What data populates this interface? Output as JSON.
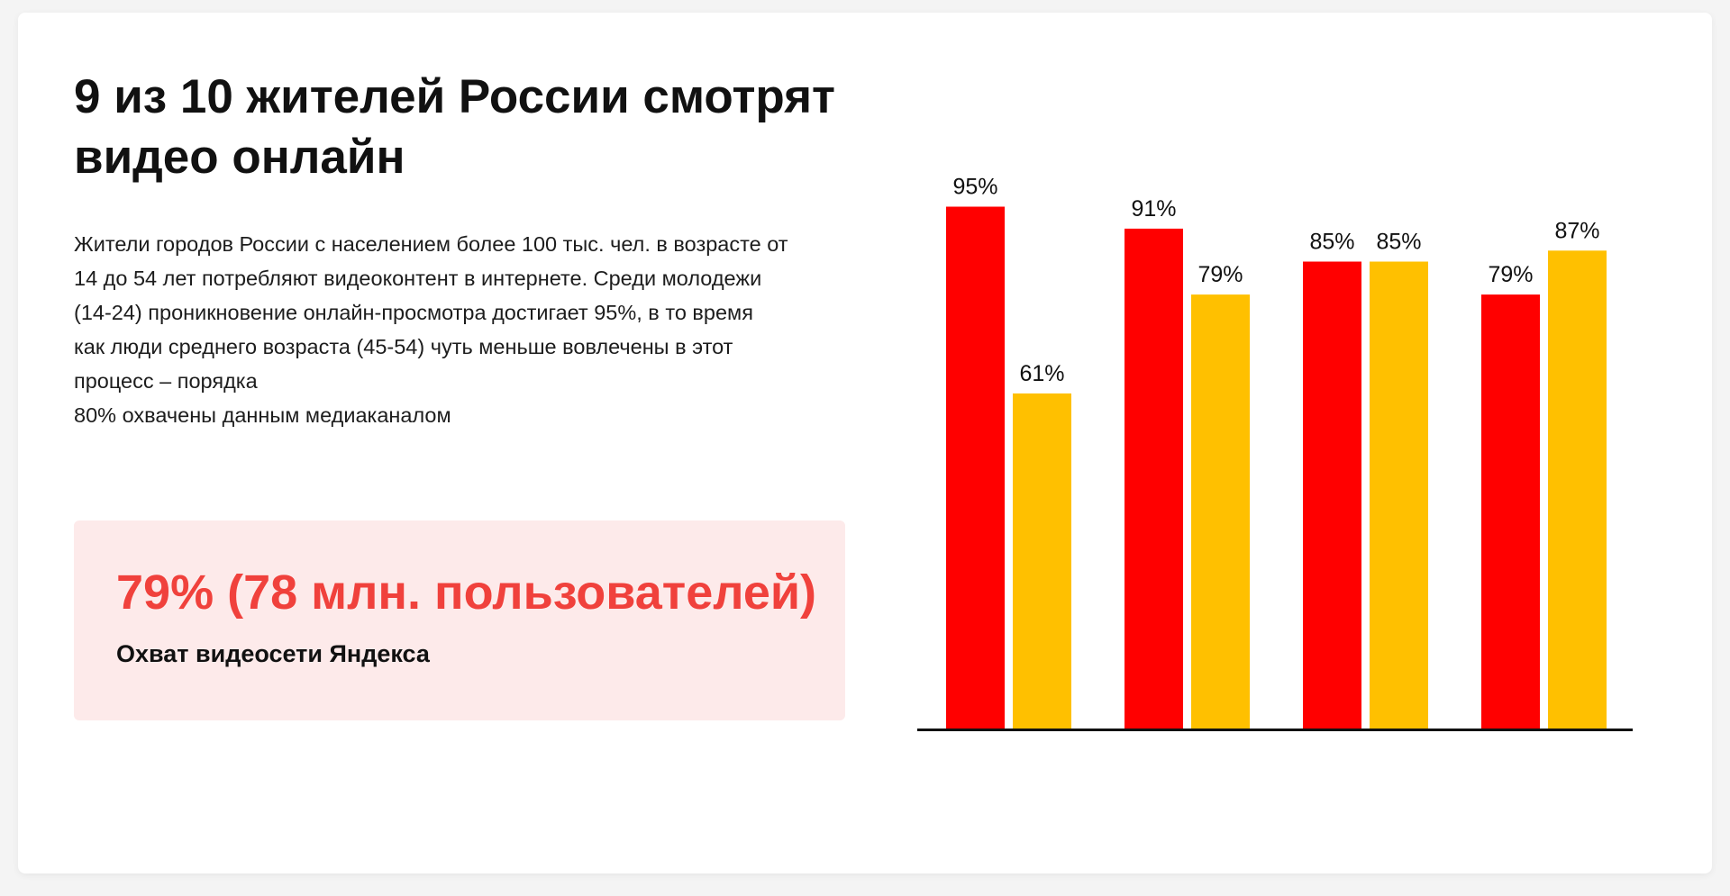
{
  "header": {
    "title": "9 из 10 жителей России смотрят видео онлайн"
  },
  "description": {
    "lines": [
      "Жители городов России с населением более 100 тыс. чел. в возрасте от",
      "14 до 54 лет потребляют видеоконтент в интернете. Среди молодежи",
      "(14-24) проникновение онлайн-просмотра достигает 95%, в то время",
      "как люди среднего возраста (45-54) чуть меньше вовлечены в этот",
      "процесс – порядка",
      "80% охвачены данным медиаканалом"
    ]
  },
  "highlight": {
    "value": "79% (78 млн. пользователей)",
    "label": "Охват видеосети Яндекса"
  },
  "colors": {
    "red": "#ff0000",
    "yellow": "#ffc000",
    "accent": "#f0413c",
    "highlight_bg": "#fdeaea"
  },
  "chart_data": {
    "type": "bar",
    "categories": [
      "",
      "",
      "",
      ""
    ],
    "series": [
      {
        "values": [
          95,
          91,
          85,
          79
        ],
        "color": "#ff0000"
      },
      {
        "values": [
          61,
          79,
          85,
          87
        ],
        "color": "#ffc000"
      }
    ],
    "value_suffix": "%",
    "ylim": [
      0,
      100
    ],
    "grid": false,
    "legend": "none"
  }
}
